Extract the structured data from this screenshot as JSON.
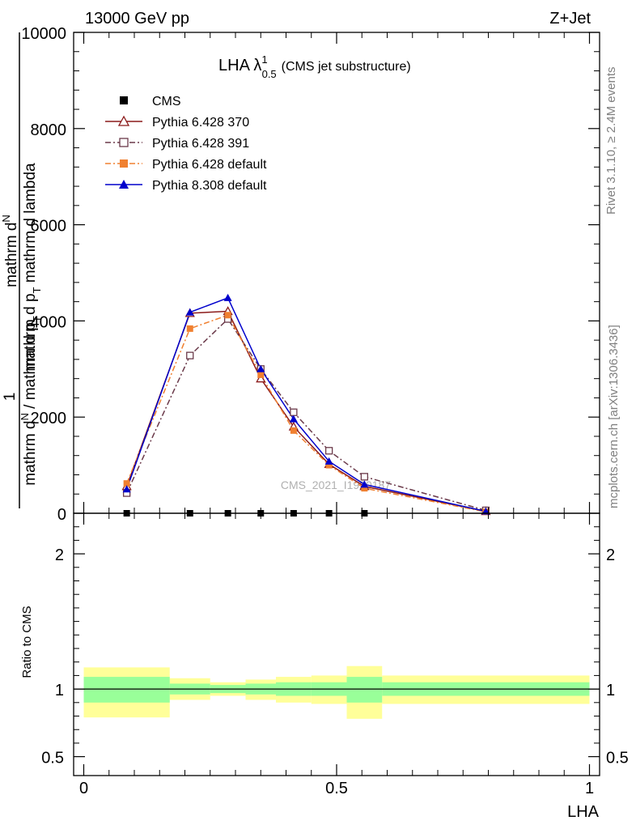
{
  "header": {
    "energy_label": "13000 GeV pp",
    "process_label": "Z+Jet"
  },
  "side_text": {
    "rivet": "Rivet 3.1.10, ≥ 2.4M events",
    "mcplots": "mcplots.cern.ch [arXiv:1306.3436]"
  },
  "watermark": "CMS_2021_I1920187",
  "main_title": {
    "prefix": "LHA λ",
    "sup": "1",
    "sub": "0.5",
    "suffix": "(CMS jet substructure)"
  },
  "axis_labels": {
    "y_main_outer_top": "mathrm d",
    "y_main_outer_N": "N",
    "y_main_outer_bottom": "mathrm d p",
    "y_main_outer_bottom_sub": "T",
    "y_main_outer_bottom_tail": " mathrm d lambda",
    "y_main_inner_top": "1",
    "y_main_inner_bottom": "mathrm d",
    "y_main_inner_N": "N",
    "y_main_inner_bottom_mid": " / mathrm d p",
    "y_main_inner_sub": "T",
    "y_ratio": "Ratio to CMS",
    "x": "LHA"
  },
  "chart_data": [
    {
      "type": "line",
      "panel": "main",
      "xlim": [
        -0.02,
        1.02
      ],
      "ylim": [
        0,
        10000
      ],
      "y_ticks": [
        0,
        2000,
        4000,
        6000,
        8000,
        10000
      ],
      "y_tick_labels": [
        "0",
        "2000",
        "4000",
        "6000",
        "8000",
        "10000"
      ],
      "legend_position": "top-left",
      "series": [
        {
          "name": "CMS",
          "color": "#000000",
          "marker": "filled-square",
          "line": "none",
          "x": [
            0.085,
            0.21,
            0.285,
            0.35,
            0.415,
            0.485,
            0.555
          ],
          "y": [
            0,
            0,
            0,
            0,
            0,
            0,
            0
          ]
        },
        {
          "name": "Pythia 6.428 370",
          "color": "#8b1a1a",
          "marker": "open-triangle",
          "line": "solid",
          "x": [
            0.085,
            0.21,
            0.285,
            0.35,
            0.415,
            0.485,
            0.555,
            0.795
          ],
          "y": [
            560,
            4160,
            4200,
            2800,
            1800,
            1020,
            560,
            40
          ]
        },
        {
          "name": "Pythia 6.428 391",
          "color": "#6b3a4a",
          "marker": "open-square",
          "line": "dashdot",
          "x": [
            0.085,
            0.21,
            0.285,
            0.35,
            0.415,
            0.485,
            0.555,
            0.795
          ],
          "y": [
            420,
            3280,
            4040,
            3000,
            2100,
            1300,
            760,
            60
          ]
        },
        {
          "name": "Pythia 6.428 default",
          "color": "#f08030",
          "marker": "filled-square",
          "line": "dashdot",
          "x": [
            0.085,
            0.21,
            0.285,
            0.35,
            0.415,
            0.485,
            0.555,
            0.795
          ],
          "y": [
            620,
            3840,
            4120,
            2880,
            1720,
            1000,
            520,
            30
          ]
        },
        {
          "name": "Pythia 8.308 default",
          "color": "#0000cc",
          "marker": "filled-triangle",
          "line": "solid",
          "x": [
            0.085,
            0.21,
            0.285,
            0.35,
            0.415,
            0.485,
            0.555,
            0.795
          ],
          "y": [
            500,
            4180,
            4480,
            3000,
            1960,
            1080,
            600,
            40
          ]
        }
      ]
    },
    {
      "type": "area",
      "panel": "ratio",
      "xlim": [
        -0.02,
        1.02
      ],
      "ylim": [
        0.36,
        2.3
      ],
      "y_ticks": [
        0.5,
        1,
        2
      ],
      "y_tick_labels": [
        "0.5",
        "1",
        "2"
      ],
      "x_ticks": [
        0,
        0.5,
        1
      ],
      "x_tick_labels": [
        "0",
        "0.5",
        "1"
      ],
      "reference_line": 1,
      "bands": [
        {
          "name": "syst",
          "color": "#ffff99",
          "bins": [
            {
              "x0": 0.0,
              "x1": 0.17,
              "lo": 0.79,
              "hi": 1.16
            },
            {
              "x0": 0.17,
              "x1": 0.25,
              "lo": 0.92,
              "hi": 1.08
            },
            {
              "x0": 0.25,
              "x1": 0.32,
              "lo": 0.95,
              "hi": 1.05
            },
            {
              "x0": 0.32,
              "x1": 0.38,
              "lo": 0.92,
              "hi": 1.07
            },
            {
              "x0": 0.38,
              "x1": 0.45,
              "lo": 0.9,
              "hi": 1.09
            },
            {
              "x0": 0.45,
              "x1": 0.52,
              "lo": 0.89,
              "hi": 1.1
            },
            {
              "x0": 0.52,
              "x1": 0.59,
              "lo": 0.78,
              "hi": 1.17
            },
            {
              "x0": 0.59,
              "x1": 1.0,
              "lo": 0.89,
              "hi": 1.1
            }
          ]
        },
        {
          "name": "stat",
          "color": "#99ff99",
          "bins": [
            {
              "x0": 0.0,
              "x1": 0.17,
              "lo": 0.9,
              "hi": 1.09
            },
            {
              "x0": 0.17,
              "x1": 0.25,
              "lo": 0.96,
              "hi": 1.04
            },
            {
              "x0": 0.25,
              "x1": 0.32,
              "lo": 0.97,
              "hi": 1.03
            },
            {
              "x0": 0.32,
              "x1": 0.38,
              "lo": 0.96,
              "hi": 1.04
            },
            {
              "x0": 0.38,
              "x1": 0.45,
              "lo": 0.95,
              "hi": 1.05
            },
            {
              "x0": 0.45,
              "x1": 0.52,
              "lo": 0.95,
              "hi": 1.05
            },
            {
              "x0": 0.52,
              "x1": 0.59,
              "lo": 0.9,
              "hi": 1.09
            },
            {
              "x0": 0.59,
              "x1": 1.0,
              "lo": 0.95,
              "hi": 1.05
            }
          ]
        }
      ]
    }
  ]
}
